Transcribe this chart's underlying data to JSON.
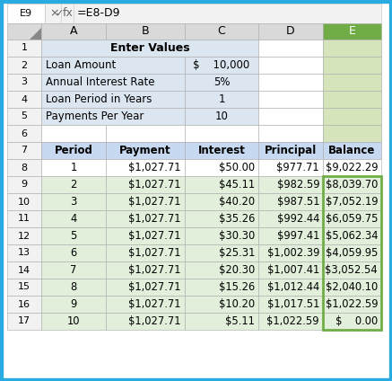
{
  "formula_bar_ref": "E9",
  "formula_bar_formula": "=E8-D9",
  "col_headers": [
    "A",
    "B",
    "C",
    "D",
    "E"
  ],
  "input_section": {
    "row1_label": "Enter Values",
    "rows": [
      {
        "row": 2,
        "label": "Loan Amount",
        "value": "$    10,000"
      },
      {
        "row": 3,
        "label": "Annual Interest Rate",
        "value": "5%"
      },
      {
        "row": 4,
        "label": "Loan Period in Years",
        "value": "1"
      },
      {
        "row": 5,
        "label": "Payments Per Year",
        "value": "10"
      }
    ]
  },
  "table_headers": [
    "Period",
    "Payment",
    "Interest",
    "Principal",
    "Balance"
  ],
  "table_data": [
    [
      "1",
      "$1,027.71",
      "$50.00",
      "$977.71",
      "$9,022.29"
    ],
    [
      "2",
      "$1,027.71",
      "$45.11",
      "$982.59",
      "$8,039.70"
    ],
    [
      "3",
      "$1,027.71",
      "$40.20",
      "$987.51",
      "$7,052.19"
    ],
    [
      "4",
      "$1,027.71",
      "$35.26",
      "$992.44",
      "$6,059.75"
    ],
    [
      "5",
      "$1,027.71",
      "$30.30",
      "$997.41",
      "$5,062.34"
    ],
    [
      "6",
      "$1,027.71",
      "$25.31",
      "$1,002.39",
      "$4,059.95"
    ],
    [
      "7",
      "$1,027.71",
      "$20.30",
      "$1,007.41",
      "$3,052.54"
    ],
    [
      "8",
      "$1,027.71",
      "$15.26",
      "$1,012.44",
      "$2,040.10"
    ],
    [
      "9",
      "$1,027.71",
      "$10.20",
      "$1,017.51",
      "$1,022.59"
    ],
    [
      "10",
      "$1,027.71",
      "$5.11",
      "$1,022.59",
      "$    0.00"
    ]
  ],
  "colors": {
    "outer_border": "#29ABE2",
    "input_block_bg": "#DCE6F1",
    "enter_values_bg": "#DCE6F1",
    "table_header_bg": "#C6D9F1",
    "green_rows_bg": "#E2EFDA",
    "white_rows_bg": "#FFFFFF",
    "col_header_bg": "#D9D9D9",
    "row_num_bg": "#F2F2F2",
    "selected_col_bg": "#D6E4BC",
    "selected_col_header_bg": "#70AD47",
    "selected_e9_border": "#70AD47",
    "formula_bar_bg": "#F2F2F2",
    "grid_line": "#AAAAAA"
  }
}
